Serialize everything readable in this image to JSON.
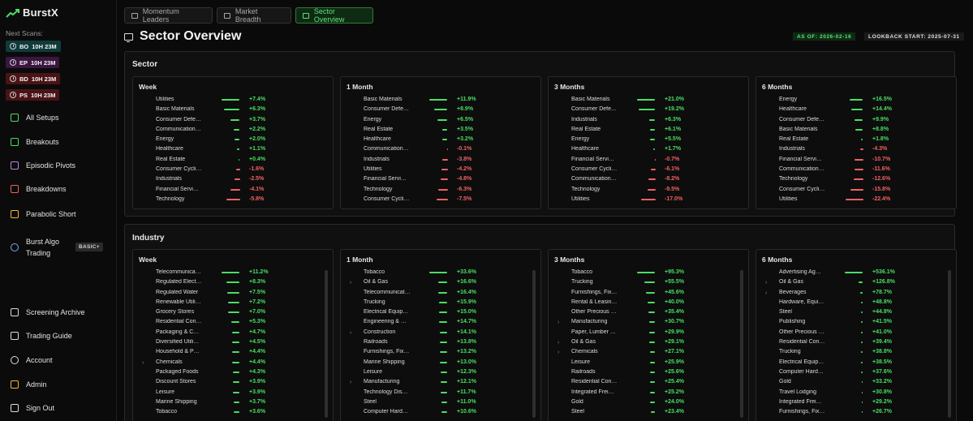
{
  "brand": {
    "name": "BurstX"
  },
  "sidebar": {
    "next_scans_label": "Next Scans:",
    "scans": [
      {
        "code": "BO",
        "time": "10H 23M",
        "color": "#0f3b3a"
      },
      {
        "code": "EP",
        "time": "10H 23M",
        "color": "#3a1640"
      },
      {
        "code": "BD",
        "time": "10H 23M",
        "color": "#4a1417"
      },
      {
        "code": "PS",
        "time": "10H 23M",
        "color": "#4a1417"
      }
    ],
    "nav": [
      {
        "label": "All Setups",
        "icon": "grid-icon",
        "color": "#4ade63"
      },
      {
        "label": "Breakouts",
        "icon": "breakout-icon",
        "color": "#4ade63"
      },
      {
        "label": "Episodic Pivots",
        "icon": "pivot-icon",
        "color": "#b784e8"
      },
      {
        "label": "Breakdowns",
        "icon": "breakdown-icon",
        "color": "#f06262"
      },
      {
        "label": "Parabolic Short",
        "icon": "parabolic-icon",
        "color": "#f2b632"
      },
      {
        "label": "Burst Algo Trading",
        "icon": "user-icon",
        "color": "#7aa7ff"
      },
      {
        "label": "Screening Archive",
        "icon": "archive-icon",
        "color": "#dcdcdc"
      },
      {
        "label": "Trading Guide",
        "icon": "book-icon",
        "color": "#dcdcdc"
      },
      {
        "label": "Account",
        "icon": "account-icon",
        "color": "#dcdcdc"
      },
      {
        "label": "Admin",
        "icon": "admin-icon",
        "color": "#f2b632"
      },
      {
        "label": "Sign Out",
        "icon": "signout-icon",
        "color": "#dcdcdc"
      }
    ],
    "algo_badge": "BASIC+"
  },
  "tabs": [
    {
      "label": "Momentum Leaders",
      "icon": "rocket-icon",
      "active": false
    },
    {
      "label": "Market Breadth",
      "icon": "chart-icon",
      "active": false
    },
    {
      "label": "Sector Overview",
      "icon": "monitor-icon",
      "active": true
    }
  ],
  "page": {
    "title": "Sector Overview",
    "as_of": "AS OF: 2026-02-16",
    "lookback": "LOOKBACK START: 2025-07-31"
  },
  "sector": {
    "title": "Sector",
    "panels": [
      {
        "title": "Week",
        "rows": [
          [
            "Utilities",
            "+7.4%"
          ],
          [
            "Basic Materials",
            "+6.3%"
          ],
          [
            "Consumer Defe…",
            "+3.7%"
          ],
          [
            "Communication…",
            "+2.2%"
          ],
          [
            "Energy",
            "+2.0%"
          ],
          [
            "Healthcare",
            "+1.1%"
          ],
          [
            "Real Estate",
            "+0.4%"
          ],
          [
            "Consumer Cycli…",
            "-1.6%"
          ],
          [
            "Industrials",
            "-2.5%"
          ],
          [
            "Financial Servi…",
            "-4.1%"
          ],
          [
            "Technology",
            "-5.8%"
          ]
        ]
      },
      {
        "title": "1 Month",
        "rows": [
          [
            "Basic Materials",
            "+11.9%"
          ],
          [
            "Consumer Defe…",
            "+8.9%"
          ],
          [
            "Energy",
            "+6.5%"
          ],
          [
            "Real Estate",
            "+3.5%"
          ],
          [
            "Healthcare",
            "+3.2%"
          ],
          [
            "Communication…",
            "-0.1%"
          ],
          [
            "Industrials",
            "-3.8%"
          ],
          [
            "Utilities",
            "-4.2%"
          ],
          [
            "Financial Servi…",
            "-4.8%"
          ],
          [
            "Technology",
            "-6.3%"
          ],
          [
            "Consumer Cycli…",
            "-7.5%"
          ]
        ]
      },
      {
        "title": "3 Months",
        "rows": [
          [
            "Basic Materials",
            "+21.0%"
          ],
          [
            "Consumer Defe…",
            "+19.2%"
          ],
          [
            "Industrials",
            "+6.3%"
          ],
          [
            "Real Estate",
            "+6.1%"
          ],
          [
            "Energy",
            "+5.5%"
          ],
          [
            "Healthcare",
            "+1.7%"
          ],
          [
            "Financial Servi…",
            "-0.7%"
          ],
          [
            "Consumer Cycli…",
            "-6.1%"
          ],
          [
            "Communication…",
            "-8.2%"
          ],
          [
            "Technology",
            "-9.5%"
          ],
          [
            "Utilities",
            "-17.0%"
          ]
        ]
      },
      {
        "title": "6 Months",
        "rows": [
          [
            "Energy",
            "+16.5%"
          ],
          [
            "Healthcare",
            "+14.4%"
          ],
          [
            "Consumer Defe…",
            "+9.9%"
          ],
          [
            "Basic Materials",
            "+8.8%"
          ],
          [
            "Real Estate",
            "+1.8%"
          ],
          [
            "Industrials",
            "-4.3%"
          ],
          [
            "Financial Servi…",
            "-10.7%"
          ],
          [
            "Communication…",
            "-11.6%"
          ],
          [
            "Technology",
            "-12.6%"
          ],
          [
            "Consumer Cycli…",
            "-15.8%"
          ],
          [
            "Utilities",
            "-22.4%"
          ]
        ]
      }
    ]
  },
  "industry": {
    "title": "Industry",
    "panels": [
      {
        "title": "Week",
        "rows": [
          [
            "Telecommunica…",
            "+11.2%",
            false
          ],
          [
            "Regulated Elect…",
            "+8.3%",
            false
          ],
          [
            "Regulated Water",
            "+7.5%",
            false
          ],
          [
            "Renewable Utili…",
            "+7.2%",
            false
          ],
          [
            "Grocery Stores",
            "+7.0%",
            false
          ],
          [
            "Residential Con…",
            "+5.3%",
            false
          ],
          [
            "Packaging & C…",
            "+4.7%",
            false
          ],
          [
            "Diversified Utili…",
            "+4.5%",
            false
          ],
          [
            "Household & P…",
            "+4.4%",
            false
          ],
          [
            "Chemicals",
            "+4.4%",
            true
          ],
          [
            "Packaged Foods",
            "+4.3%",
            false
          ],
          [
            "Discount Stores",
            "+3.9%",
            false
          ],
          [
            "Leisure",
            "+3.9%",
            false
          ],
          [
            "Marine Shipping",
            "+3.7%",
            false
          ],
          [
            "Tobacco",
            "+3.6%",
            false
          ]
        ]
      },
      {
        "title": "1 Month",
        "rows": [
          [
            "Tobacco",
            "+33.6%",
            false
          ],
          [
            "Oil & Gas",
            "+16.6%",
            true
          ],
          [
            "Telecommunicati…",
            "+16.4%",
            false
          ],
          [
            "Trucking",
            "+15.9%",
            false
          ],
          [
            "Electrical Equip…",
            "+15.0%",
            false
          ],
          [
            "Engineering & …",
            "+14.7%",
            false
          ],
          [
            "Construction",
            "+14.1%",
            true
          ],
          [
            "Railroads",
            "+13.8%",
            false
          ],
          [
            "Furnishings, Fix…",
            "+13.2%",
            false
          ],
          [
            "Marine Shipping",
            "+13.0%",
            false
          ],
          [
            "Leisure",
            "+12.3%",
            false
          ],
          [
            "Manufacturing",
            "+12.1%",
            true
          ],
          [
            "Technology Dis…",
            "+11.7%",
            false
          ],
          [
            "Steel",
            "+11.0%",
            false
          ],
          [
            "Computer Hard…",
            "+10.6%",
            false
          ]
        ]
      },
      {
        "title": "3 Months",
        "rows": [
          [
            "Tobacco",
            "+95.3%",
            false
          ],
          [
            "Trucking",
            "+55.5%",
            false
          ],
          [
            "Furnishings, Fix…",
            "+45.6%",
            false
          ],
          [
            "Rental & Leasin…",
            "+40.0%",
            false
          ],
          [
            "Other Precious …",
            "+35.4%",
            false
          ],
          [
            "Manufacturing",
            "+30.7%",
            true
          ],
          [
            "Paper, Lumber …",
            "+29.9%",
            false
          ],
          [
            "Oil & Gas",
            "+29.1%",
            true
          ],
          [
            "Chemicals",
            "+27.1%",
            true
          ],
          [
            "Leisure",
            "+25.9%",
            false
          ],
          [
            "Railroads",
            "+25.6%",
            false
          ],
          [
            "Residential Con…",
            "+25.4%",
            false
          ],
          [
            "Integrated Frei…",
            "+25.2%",
            false
          ],
          [
            "Gold",
            "+24.0%",
            false
          ],
          [
            "Steel",
            "+23.4%",
            false
          ]
        ]
      },
      {
        "title": "6 Months",
        "rows": [
          [
            "Advertising Ag…",
            "+536.1%",
            false
          ],
          [
            "Oil & Gas",
            "+126.8%",
            true
          ],
          [
            "Beverages",
            "+78.7%",
            true
          ],
          [
            "Hardware, Equi…",
            "+48.8%",
            false
          ],
          [
            "Steel",
            "+44.8%",
            false
          ],
          [
            "Publishing",
            "+41.5%",
            false
          ],
          [
            "Other Precious …",
            "+41.0%",
            false
          ],
          [
            "Residential Con…",
            "+39.4%",
            false
          ],
          [
            "Trucking",
            "+38.8%",
            false
          ],
          [
            "Electrical Equip…",
            "+38.5%",
            false
          ],
          [
            "Computer Hard…",
            "+37.6%",
            false
          ],
          [
            "Gold",
            "+33.2%",
            false
          ],
          [
            "Travel Lodging",
            "+30.8%",
            false
          ],
          [
            "Integrated Frei…",
            "+29.2%",
            false
          ],
          [
            "Furnishings, Fix…",
            "+26.7%",
            false
          ]
        ]
      }
    ]
  }
}
